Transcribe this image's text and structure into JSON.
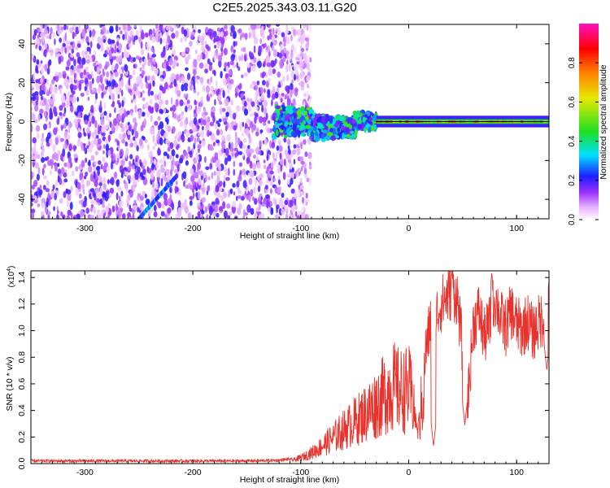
{
  "page_title": "C2E5.2025.343.03.11.G20",
  "chart_data": [
    {
      "type": "heatmap",
      "title": "C2E5.2025.343.03.11.G20",
      "xlabel": "Height of straight line (km)",
      "ylabel": "Frequency (Hz)",
      "xlim": [
        -350,
        130
      ],
      "ylim": [
        -50,
        50
      ],
      "xticks": [
        -300,
        -200,
        -100,
        0,
        100
      ],
      "xtick_labels": [
        "-300",
        "-200",
        "-100",
        "0",
        "100"
      ],
      "yticks": [
        -40,
        -20,
        0,
        20,
        40
      ],
      "ytick_labels": [
        "-40",
        "-20",
        "0",
        "20",
        "40"
      ],
      "colorbar": {
        "label": "Normalized spectral amplitude",
        "range": [
          0,
          1
        ],
        "ticks": [
          0.0,
          0.2,
          0.4,
          0.6,
          0.8
        ],
        "tick_labels": [
          "0.0",
          "0.2",
          "0.4",
          "0.6",
          "0.8"
        ],
        "colors": [
          "#ffffff",
          "#e9b6ff",
          "#9b30ff",
          "#1e1eff",
          "#00e0ff",
          "#20e020",
          "#e8e800",
          "#ff8000",
          "#ff0000",
          "#ff10c0"
        ]
      },
      "features": [
        {
          "name": "diffuse noise band",
          "x_range": [
            -350,
            -97
          ],
          "freq_range": [
            -50,
            50
          ],
          "amplitude": 0.15
        },
        {
          "name": "tone cluster",
          "x_range": [
            -125,
            -30
          ],
          "freq_center": 0,
          "freq_halfwidth": 8,
          "amplitude": 0.35
        },
        {
          "name": "carrier line",
          "x_range": [
            -30,
            130
          ],
          "freq_center": 0,
          "amplitude": 0.85
        },
        {
          "name": "low-frequency streak",
          "x_range": [
            -250,
            -215
          ],
          "freq_range": [
            -50,
            -28
          ],
          "amplitude": 0.2
        }
      ]
    },
    {
      "type": "line",
      "xlabel": "Height of straight line (km)",
      "ylabel": "SNR (10 * v/v)",
      "y_multiplier": "(x10",
      "y_multiplier_exponent": "4",
      "y_multiplier_close": ")",
      "xlim": [
        -350,
        130
      ],
      "ylim": [
        0,
        1.45
      ],
      "xticks": [
        -300,
        -200,
        -100,
        0,
        100
      ],
      "xtick_labels": [
        "-300",
        "-200",
        "-100",
        "0",
        "100"
      ],
      "yticks": [
        0.0,
        0.2,
        0.4,
        0.6,
        0.8,
        1.0,
        1.2,
        1.4
      ],
      "ytick_labels": [
        "0.0",
        "0.2",
        "0.4",
        "0.6",
        "0.8",
        "1.0",
        "1.2",
        "1.4"
      ],
      "series": [
        {
          "name": "SNR",
          "color": "#e8332d",
          "x": [
            -350,
            -300,
            -250,
            -200,
            -150,
            -120,
            -105,
            -95,
            -85,
            -75,
            -65,
            -55,
            -45,
            -35,
            -30,
            -25,
            -20,
            -15,
            -10,
            -5,
            0,
            5,
            10,
            15,
            20,
            25,
            30,
            35,
            40,
            45,
            50,
            55,
            60,
            65,
            70,
            75,
            80,
            85,
            90,
            95,
            100,
            105,
            110,
            115,
            120,
            125,
            130
          ],
          "values": [
            0.02,
            0.02,
            0.02,
            0.02,
            0.02,
            0.025,
            0.04,
            0.08,
            0.14,
            0.22,
            0.3,
            0.38,
            0.46,
            0.55,
            0.6,
            0.66,
            0.72,
            0.78,
            0.74,
            0.72,
            0.75,
            0.6,
            0.45,
            0.8,
            1.05,
            1.1,
            1.2,
            1.25,
            1.3,
            1.25,
            0.85,
            0.5,
            1.05,
            1.15,
            0.95,
            1.05,
            1.25,
            1.1,
            1.02,
            1.15,
            1.05,
            1.0,
            1.08,
            0.98,
            1.05,
            1.1,
            1.3
          ],
          "dips": [
            {
              "x": 52,
              "value": 0.29
            },
            {
              "x": 23,
              "value": 0.13
            },
            {
              "x": 8,
              "value": 0.25
            },
            {
              "x": 128,
              "value": 0.7
            }
          ],
          "peaks": [
            {
              "x": 40,
              "value": 1.45
            },
            {
              "x": 77,
              "value": 1.44
            },
            {
              "x": 130,
              "value": 1.38
            }
          ]
        }
      ]
    }
  ]
}
